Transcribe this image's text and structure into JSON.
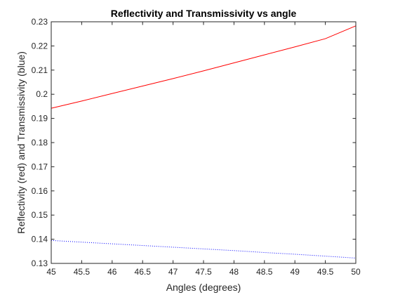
{
  "chart_data": {
    "type": "line",
    "title": "Reflectivity and Transmissivity vs angle",
    "xlabel": "Angles (degrees)",
    "ylabel": "Reflectivity (red) and Transmissivity (blue)",
    "xlim": [
      45,
      50
    ],
    "ylim": [
      0.13,
      0.23
    ],
    "x_ticks": [
      45,
      45.5,
      46,
      46.5,
      47,
      47.5,
      48,
      48.5,
      49,
      49.5,
      50
    ],
    "x_tick_labels": [
      "45",
      "45.5",
      "46",
      "46.5",
      "47",
      "47.5",
      "48",
      "48.5",
      "49",
      "49.5",
      "50"
    ],
    "y_ticks": [
      0.13,
      0.14,
      0.15,
      0.16,
      0.17,
      0.18,
      0.19,
      0.2,
      0.21,
      0.22,
      0.23
    ],
    "y_tick_labels": [
      "0.13",
      "0.14",
      "0.15",
      "0.16",
      "0.17",
      "0.18",
      "0.19",
      "0.2",
      "0.21",
      "0.22",
      "0.23"
    ],
    "grid": false,
    "series": [
      {
        "color": "#ff0000",
        "style": "solid",
        "x": [
          45,
          45.5,
          46,
          46.5,
          47,
          47.5,
          48,
          48.5,
          49,
          49.5,
          50
        ],
        "values": [
          0.1942,
          0.1972,
          0.2003,
          0.2034,
          0.2065,
          0.2097,
          0.213,
          0.2163,
          0.2196,
          0.223,
          0.2283
        ]
      },
      {
        "color": "#0000ff",
        "style": "dotted",
        "x": [
          45,
          45.5,
          46,
          46.5,
          47,
          47.5,
          48,
          48.5,
          49,
          49.5,
          50
        ],
        "values": [
          0.1395,
          0.1388,
          0.1381,
          0.1374,
          0.1367,
          0.136,
          0.1353,
          0.1345,
          0.1338,
          0.133,
          0.1322
        ]
      }
    ]
  }
}
